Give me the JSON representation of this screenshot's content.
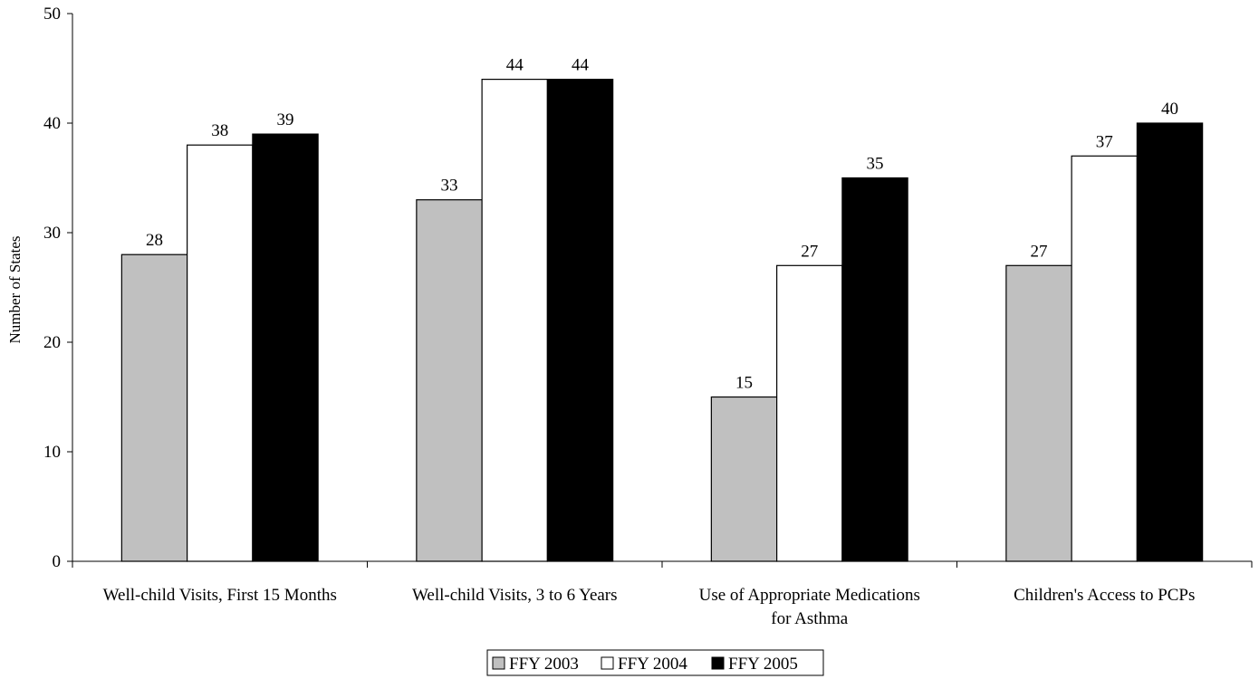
{
  "chart_data": {
    "type": "bar",
    "title": "",
    "xlabel": "",
    "ylabel": "Number of States",
    "ylim": [
      0,
      50
    ],
    "yticks": [
      0,
      10,
      20,
      30,
      40,
      50
    ],
    "grid": false,
    "legend_position": "bottom",
    "categories": [
      [
        "Well-child Visits, First 15 Months"
      ],
      [
        "Well-child Visits, 3 to 6 Years"
      ],
      [
        "Use of Appropriate Medications",
        "for Asthma"
      ],
      [
        "Children's Access to PCPs"
      ]
    ],
    "series": [
      {
        "name": "FFY 2003",
        "color": "#c0c0c0",
        "values": [
          28,
          33,
          15,
          27
        ]
      },
      {
        "name": "FFY 2004",
        "color": "#ffffff",
        "values": [
          38,
          44,
          27,
          37
        ]
      },
      {
        "name": "FFY 2005",
        "color": "#000000",
        "values": [
          39,
          44,
          35,
          40
        ]
      }
    ]
  }
}
